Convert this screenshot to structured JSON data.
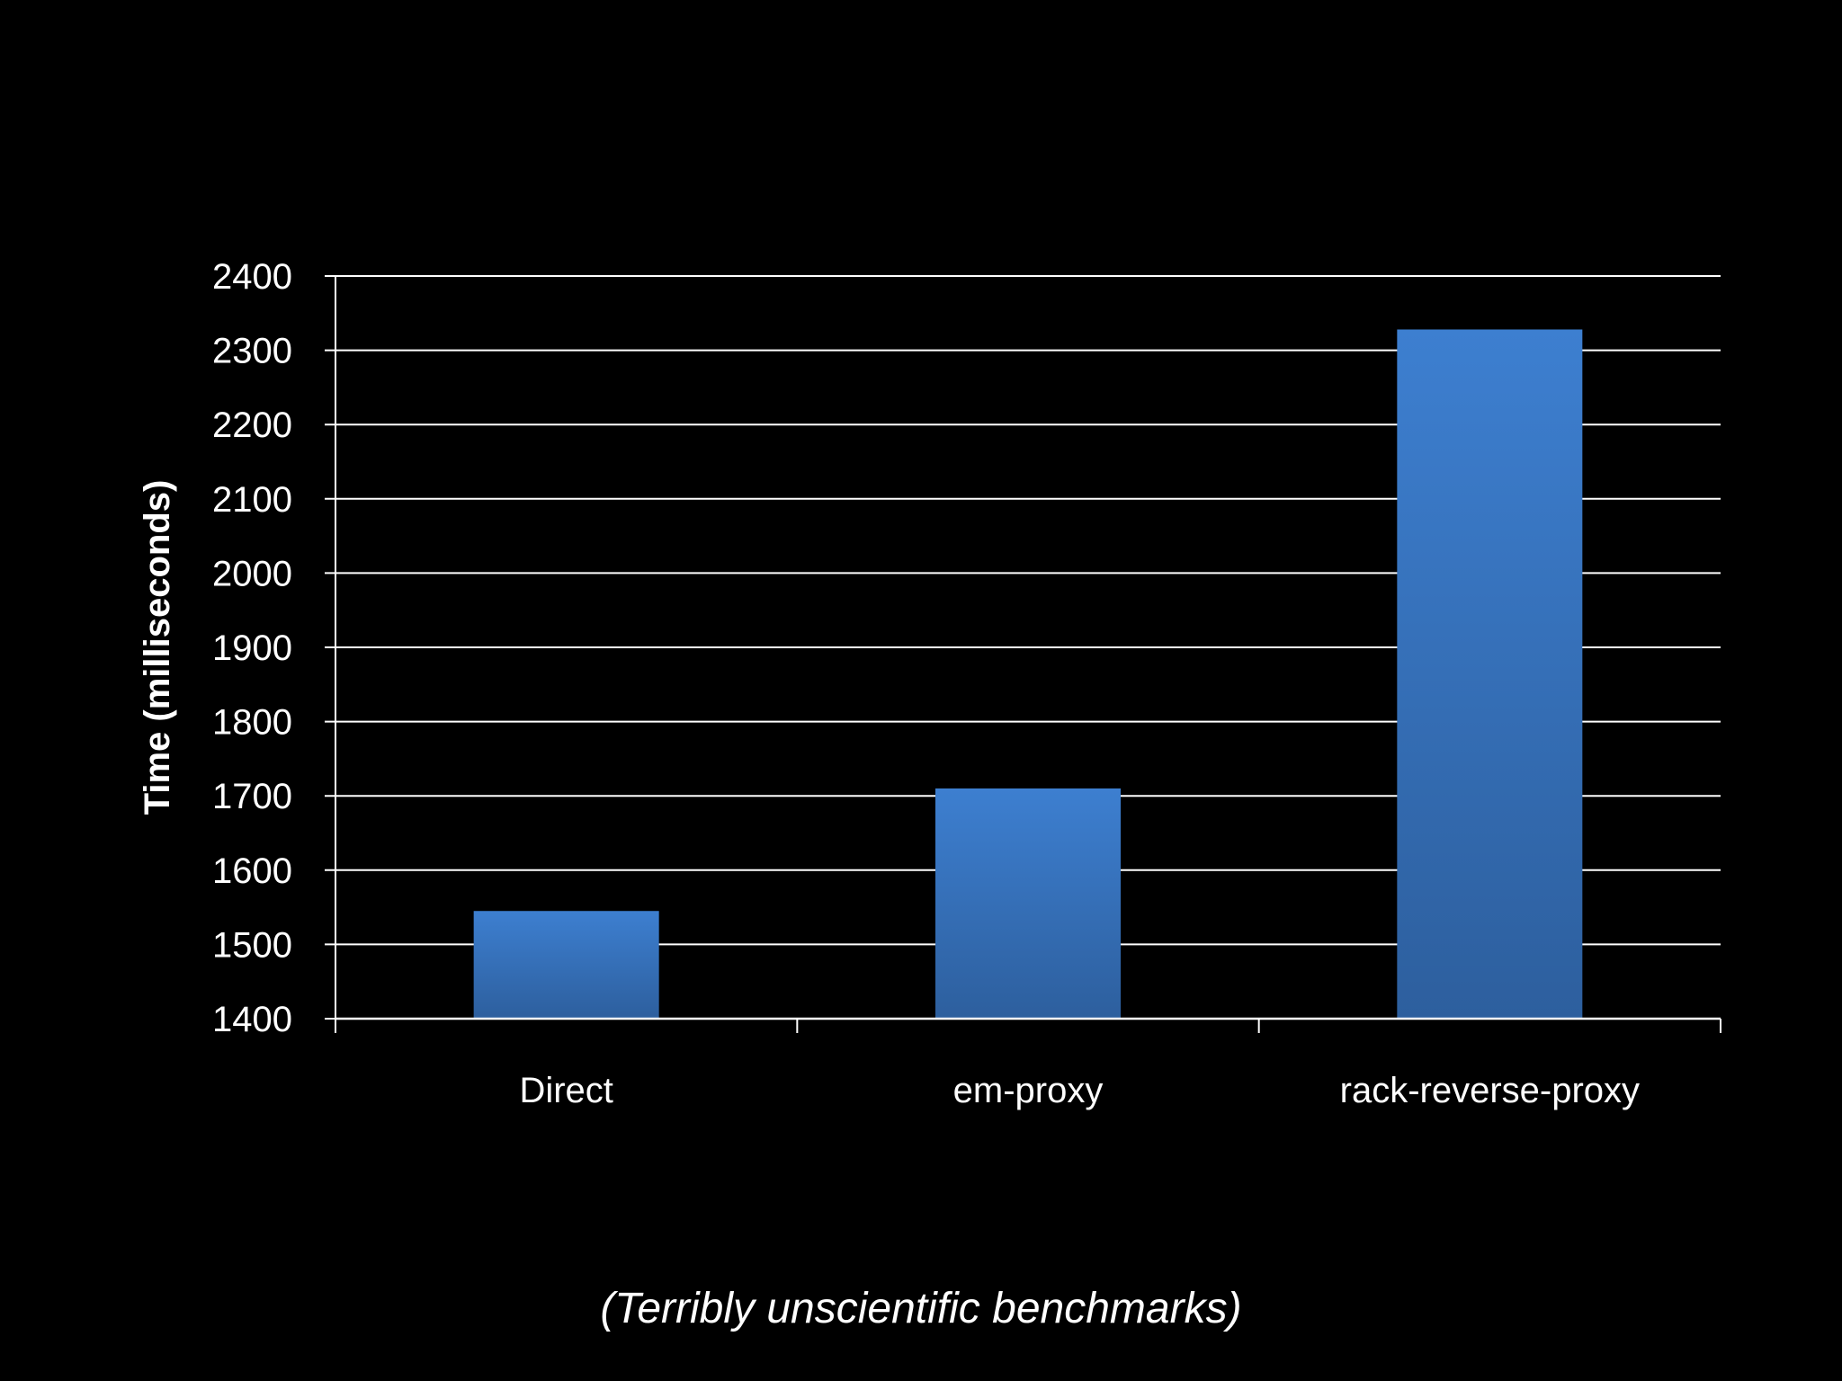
{
  "chart_data": {
    "type": "bar",
    "categories": [
      "Direct",
      "em-proxy",
      "rack-reverse-proxy"
    ],
    "values": [
      1545,
      1710,
      2328
    ],
    "ylabel": "Time (milliseconds)",
    "xlabel": "",
    "ylim": [
      1400,
      2400
    ],
    "yticks": [
      1400,
      1500,
      1600,
      1700,
      1800,
      1900,
      2000,
      2100,
      2200,
      2300,
      2400
    ],
    "grid": true,
    "legend": "none",
    "colors": {
      "background": "#000000",
      "bar_top": "#3d7fd0",
      "bar_bottom": "#2d5f9e",
      "grid": "#ffffff",
      "text": "#ffffff"
    }
  },
  "caption": "(Terribly unscientific benchmarks)"
}
